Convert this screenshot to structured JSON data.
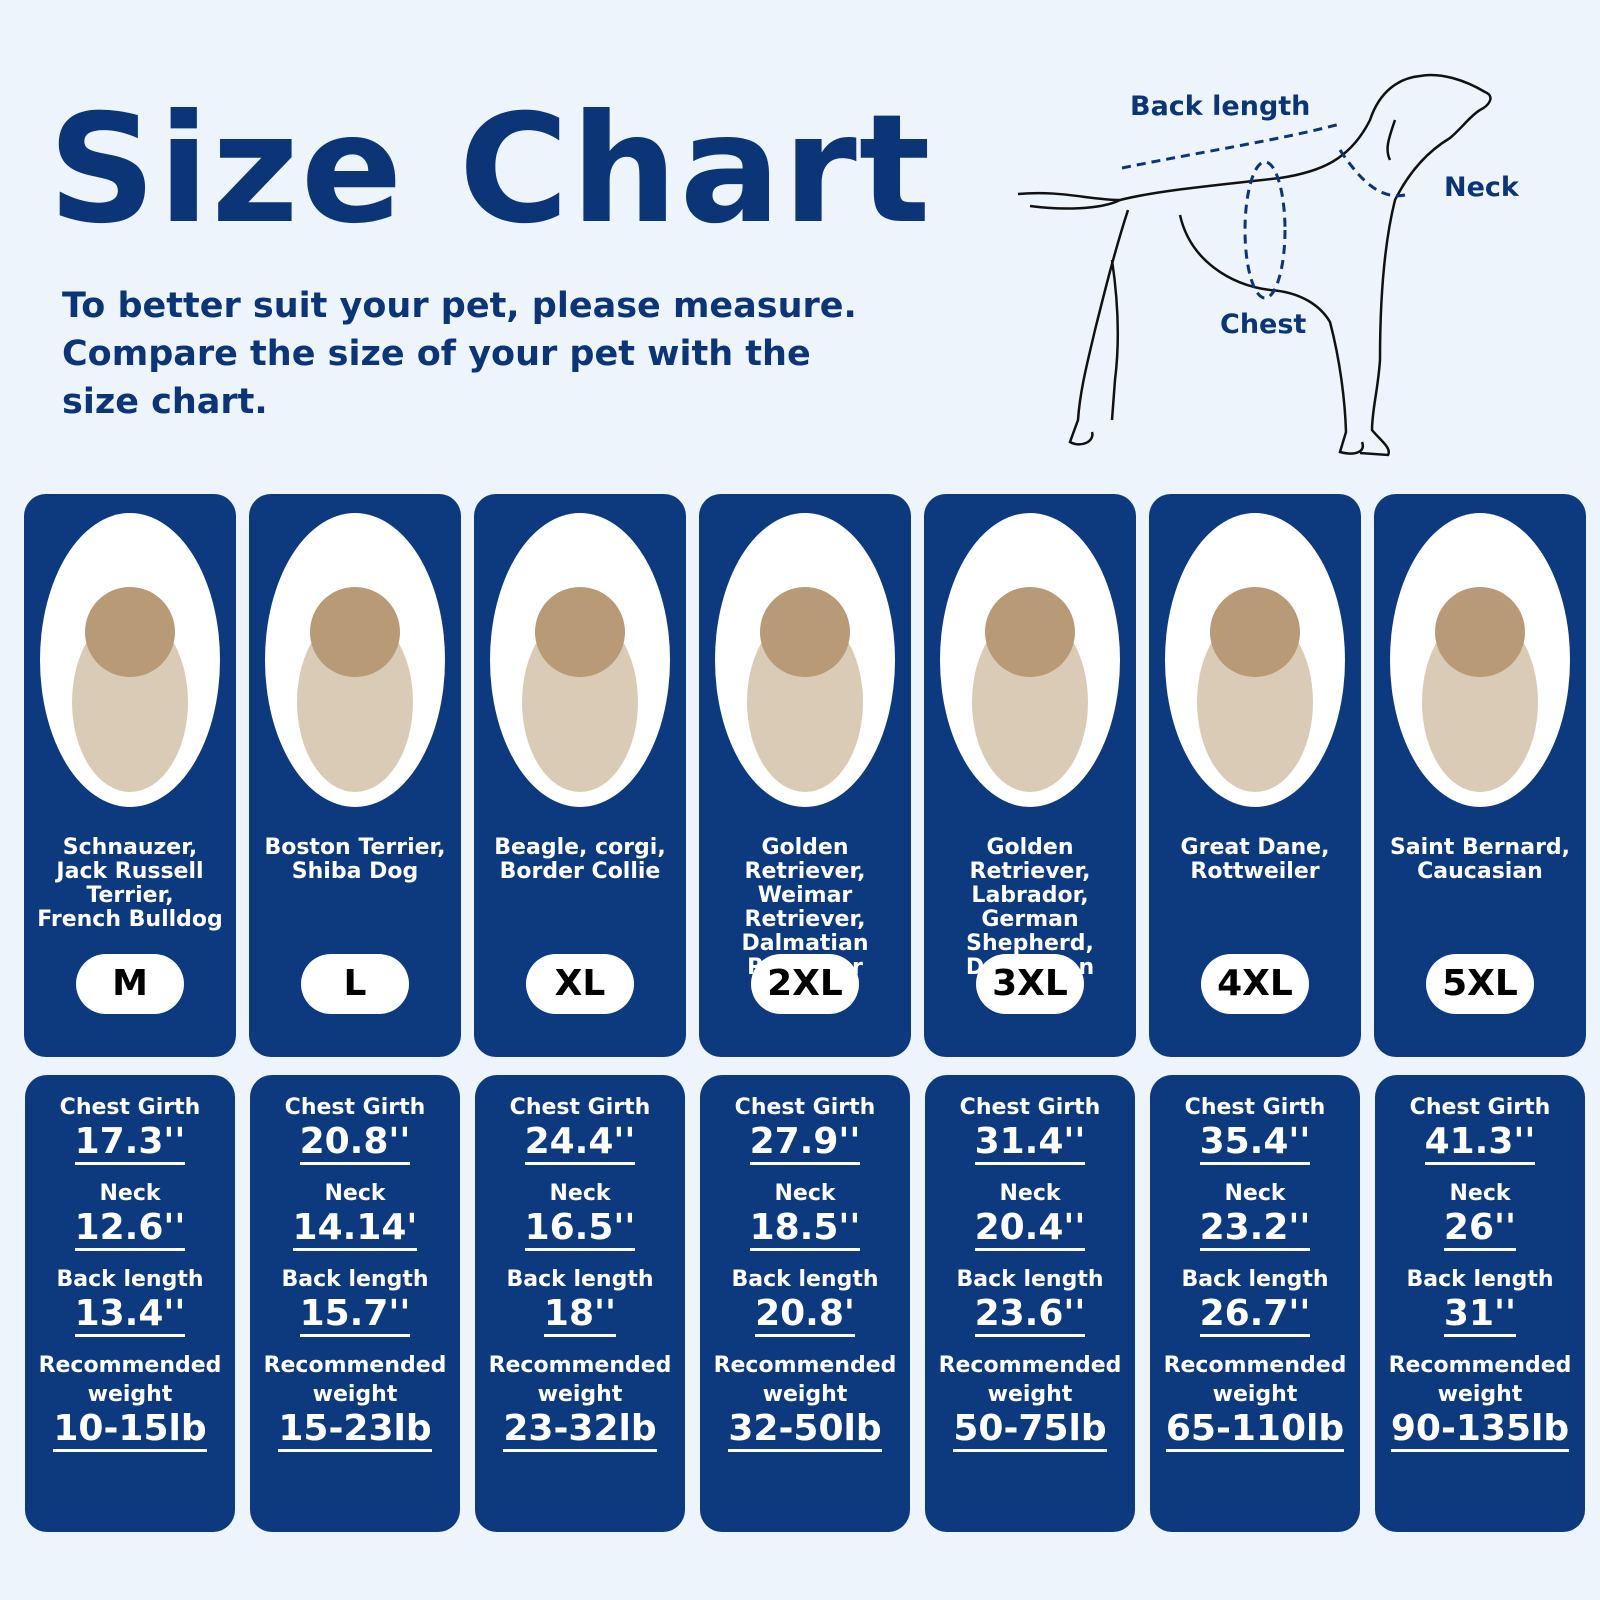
{
  "header": {
    "title": "Size Chart",
    "description": [
      "To better suit your pet, please measure.",
      "Compare the size of your pet with the",
      "size chart."
    ]
  },
  "diagram": {
    "back_length": "Back length",
    "neck": "Neck",
    "chest": "Chest"
  },
  "columns": [
    {
      "breeds": [
        "Schnauzer,",
        "Jack Russell",
        "Terrier,",
        "French Bulldog"
      ],
      "size": "M",
      "measurements": [
        {
          "label": "Chest Girth",
          "value": "17.3''"
        },
        {
          "label": "Neck",
          "value": "12.6''"
        },
        {
          "label": "Back length",
          "value": "13.4''"
        },
        {
          "label": "Recommended weight",
          "value": "10-15lb"
        }
      ]
    },
    {
      "breeds": [
        "Boston Terrier,",
        "Shiba Dog"
      ],
      "size": "L",
      "measurements": [
        {
          "label": "Chest Girth",
          "value": "20.8''"
        },
        {
          "label": "Neck",
          "value": "14.14'"
        },
        {
          "label": "Back length",
          "value": "15.7''"
        },
        {
          "label": "Recommended weight",
          "value": "15-23lb"
        }
      ]
    },
    {
      "breeds": [
        "Beagle, corgi,",
        "Border Collie"
      ],
      "size": "XL",
      "measurements": [
        {
          "label": "Chest Girth",
          "value": "24.4''"
        },
        {
          "label": "Neck",
          "value": "16.5''"
        },
        {
          "label": "Back length",
          "value": "18''"
        },
        {
          "label": "Recommended weight",
          "value": "23-32lb"
        }
      ]
    },
    {
      "breeds": [
        "Golden Retriever,",
        "Weimar Retriever,",
        "Dalmatian",
        "Retriever"
      ],
      "size": "2XL",
      "measurements": [
        {
          "label": "Chest Girth",
          "value": "27.9''"
        },
        {
          "label": "Neck",
          "value": "18.5''"
        },
        {
          "label": "Back length",
          "value": "20.8'"
        },
        {
          "label": "Recommended weight",
          "value": "32-50lb"
        }
      ]
    },
    {
      "breeds": [
        "Golden Retriever,",
        "Labrador,",
        "German Shepherd,",
        "Doberman"
      ],
      "size": "3XL",
      "measurements": [
        {
          "label": "Chest Girth",
          "value": "31.4''"
        },
        {
          "label": "Neck",
          "value": "20.4''"
        },
        {
          "label": "Back length",
          "value": "23.6''"
        },
        {
          "label": "Recommended weight",
          "value": "50-75lb"
        }
      ]
    },
    {
      "breeds": [
        "Great Dane,",
        "Rottweiler"
      ],
      "size": "4XL",
      "measurements": [
        {
          "label": "Chest Girth",
          "value": "35.4''"
        },
        {
          "label": "Neck",
          "value": "23.2''"
        },
        {
          "label": "Back length",
          "value": "26.7''"
        },
        {
          "label": "Recommended weight",
          "value": "65-110lb"
        }
      ]
    },
    {
      "breeds": [
        "Saint Bernard,",
        "Caucasian"
      ],
      "size": "5XL",
      "measurements": [
        {
          "label": "Chest Girth",
          "value": "41.3''"
        },
        {
          "label": "Neck",
          "value": "26''"
        },
        {
          "label": "Back length",
          "value": "31''"
        },
        {
          "label": "Recommended weight",
          "value": "90-135lb"
        }
      ]
    }
  ]
}
